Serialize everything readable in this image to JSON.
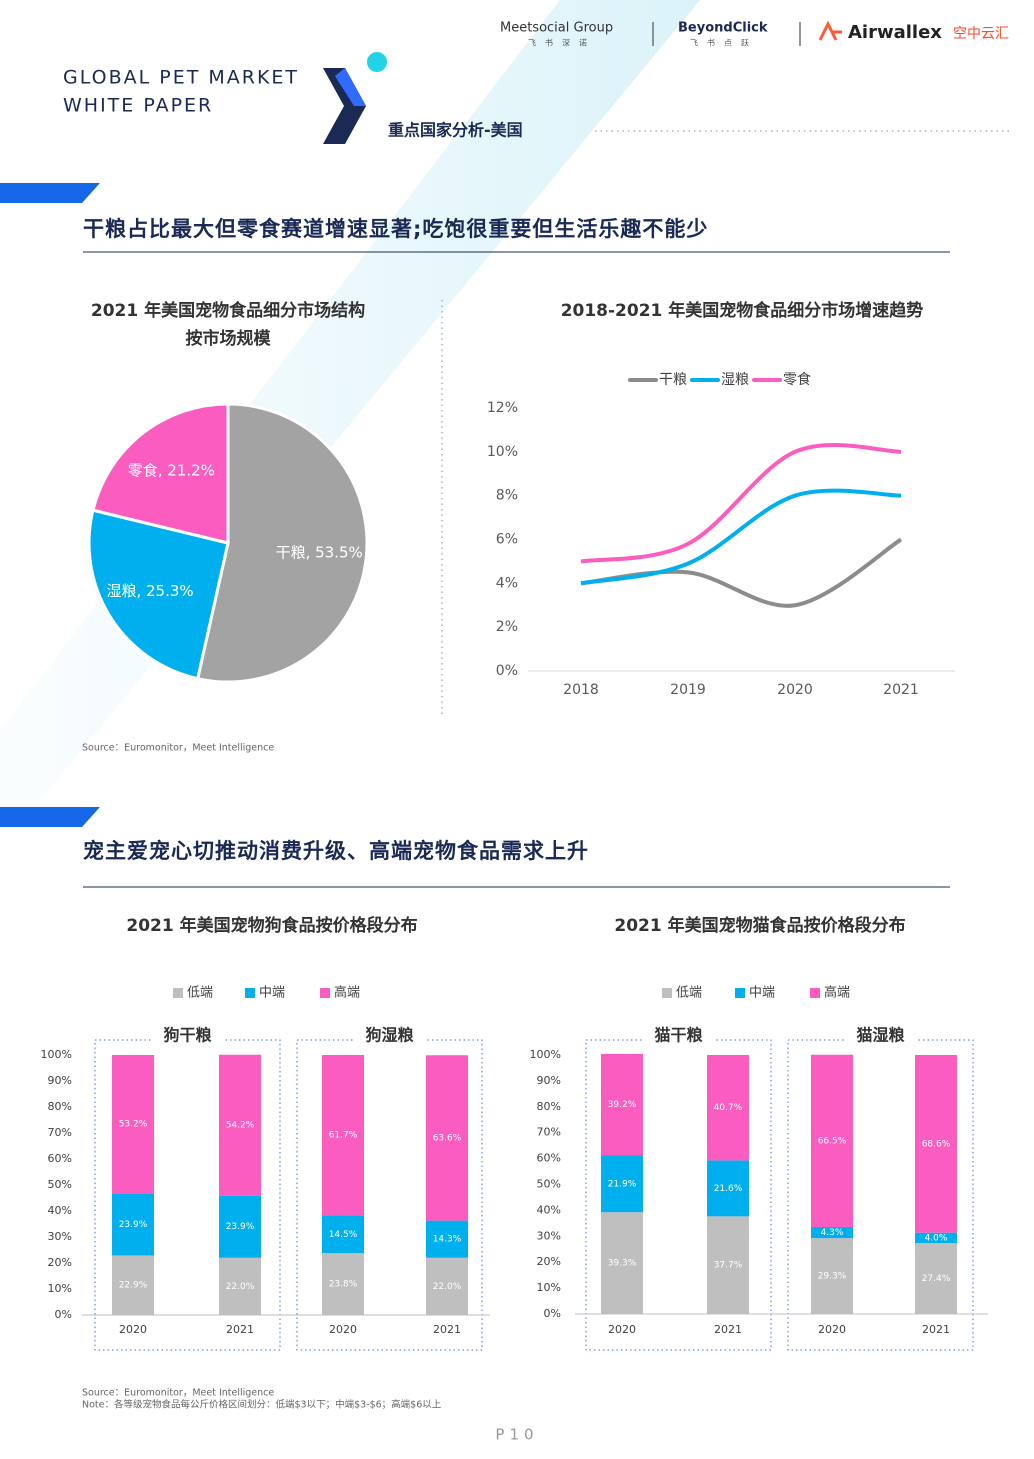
{
  "header": {
    "title_lines": [
      "GLOBAL PET MARKET",
      "WHITE PAPER"
    ],
    "section": "重点国家分析-美国",
    "logos": [
      {
        "name": "Meetsocial Group",
        "sub": "飞书深诺"
      },
      {
        "name": "BeyondClick",
        "sub": "飞书点跃"
      },
      {
        "name": "Airwallex",
        "sub": "空中云汇"
      }
    ]
  },
  "sections": [
    {
      "heading": "干粮占比最大但零食赛道增速显著;吃饱很重要但生活乐趣不能少"
    },
    {
      "heading": "宠主爱宠心切推动消费升级、高端宠物食品需求上升"
    }
  ],
  "sources": [
    "Source：Euromonitor，Meet Intelligence",
    "Source：Euromonitor，Meet Intelligence"
  ],
  "note": "Note：各等级宠物食品每公斤价格区间划分：低端$3以下；中端$3-$6；高端$6以上",
  "page": "P10",
  "chart_data": [
    {
      "type": "pie",
      "title": "2021 年美国宠物食品细分市场结构",
      "subtitle": "按市场规模",
      "categories": [
        "干粮",
        "湿粮",
        "零食"
      ],
      "values": [
        53.5,
        25.3,
        21.2
      ],
      "value_labels": [
        "干粮, 53.5%",
        "湿粮, 25.3%",
        "零食, 21.2%"
      ],
      "colors": [
        "#a3a3a3",
        "#00b0ee",
        "#fb5cc0"
      ]
    },
    {
      "type": "line",
      "title": "2018-2021 年美国宠物食品细分市场增速趋势",
      "categories": [
        "2018",
        "2019",
        "2020",
        "2021"
      ],
      "series": [
        {
          "name": "干粮",
          "color": "#8c8c8c",
          "values": [
            4,
            4.5,
            3,
            6
          ]
        },
        {
          "name": "湿粮",
          "color": "#00b0ee",
          "values": [
            4,
            4.9,
            8,
            8
          ]
        },
        {
          "name": "零食",
          "color": "#fb5cc0",
          "values": [
            5,
            5.8,
            10,
            10
          ]
        }
      ],
      "ylim": [
        0,
        12
      ],
      "yticks": [
        {
          "value": 0,
          "label": "0%"
        },
        {
          "value": 2,
          "label": "2%"
        },
        {
          "value": 4,
          "label": "4%"
        },
        {
          "value": 6,
          "label": "6%"
        },
        {
          "value": 8,
          "label": "8%"
        },
        {
          "value": 10,
          "label": "10%"
        },
        {
          "value": 12,
          "label": "12%"
        }
      ]
    },
    {
      "type": "stacked_bar",
      "title": "2021 年美国宠物狗食品按价格段分布",
      "groups": [
        "狗干粮",
        "狗湿粮"
      ],
      "categories": [
        "2020",
        "2021",
        "2020",
        "2021"
      ],
      "series": [
        {
          "name": "低端",
          "color": "#bfbfbf",
          "values": [
            22.9,
            22.0,
            23.8,
            22.0
          ],
          "value_labels": [
            "22.9%",
            "22.0%",
            "23.8%",
            "22.0%"
          ]
        },
        {
          "name": "中端",
          "color": "#00b0ee",
          "values": [
            23.9,
            23.9,
            14.5,
            14.3
          ],
          "value_labels": [
            "23.9%",
            "23.9%",
            "14.5%",
            "14.3%"
          ]
        },
        {
          "name": "高端",
          "color": "#fb5cc0",
          "values": [
            53.2,
            54.2,
            61.7,
            63.6
          ],
          "value_labels": [
            "53.2%",
            "54.2%",
            "61.7%",
            "63.6%"
          ]
        }
      ],
      "ylim": [
        0,
        100
      ],
      "yticks": [
        {
          "value": 0,
          "label": "0%"
        },
        {
          "value": 10,
          "label": "10%"
        },
        {
          "value": 20,
          "label": "20%"
        },
        {
          "value": 30,
          "label": "30%"
        },
        {
          "value": 40,
          "label": "40%"
        },
        {
          "value": 50,
          "label": "50%"
        },
        {
          "value": 60,
          "label": "60%"
        },
        {
          "value": 70,
          "label": "70%"
        },
        {
          "value": 80,
          "label": "80%"
        },
        {
          "value": 90,
          "label": "90%"
        },
        {
          "value": 100,
          "label": "100%"
        }
      ]
    },
    {
      "type": "stacked_bar",
      "title": "2021 年美国宠物猫食品按价格段分布",
      "groups": [
        "猫干粮",
        "猫湿粮"
      ],
      "categories": [
        "2020",
        "2021",
        "2020",
        "2021"
      ],
      "series": [
        {
          "name": "低端",
          "color": "#bfbfbf",
          "values": [
            39.3,
            37.7,
            29.3,
            27.4
          ],
          "value_labels": [
            "39.3%",
            "37.7%",
            "29.3%",
            "27.4%"
          ]
        },
        {
          "name": "中端",
          "color": "#00b0ee",
          "values": [
            21.9,
            21.6,
            4.3,
            4.0
          ],
          "value_labels": [
            "21.9%",
            "21.6%",
            "4.3%",
            "4.0%"
          ]
        },
        {
          "name": "高端",
          "color": "#fb5cc0",
          "values": [
            39.2,
            40.7,
            66.5,
            68.6
          ],
          "value_labels": [
            "39.2%",
            "40.7%",
            "66.5%",
            "68.6%"
          ]
        }
      ],
      "ylim": [
        0,
        100
      ],
      "yticks": [
        {
          "value": 0,
          "label": "0%"
        },
        {
          "value": 10,
          "label": "10%"
        },
        {
          "value": 20,
          "label": "20%"
        },
        {
          "value": 30,
          "label": "30%"
        },
        {
          "value": 40,
          "label": "40%"
        },
        {
          "value": 50,
          "label": "50%"
        },
        {
          "value": 60,
          "label": "60%"
        },
        {
          "value": 70,
          "label": "70%"
        },
        {
          "value": 80,
          "label": "80%"
        },
        {
          "value": 90,
          "label": "90%"
        },
        {
          "value": 100,
          "label": "100%"
        }
      ]
    }
  ]
}
